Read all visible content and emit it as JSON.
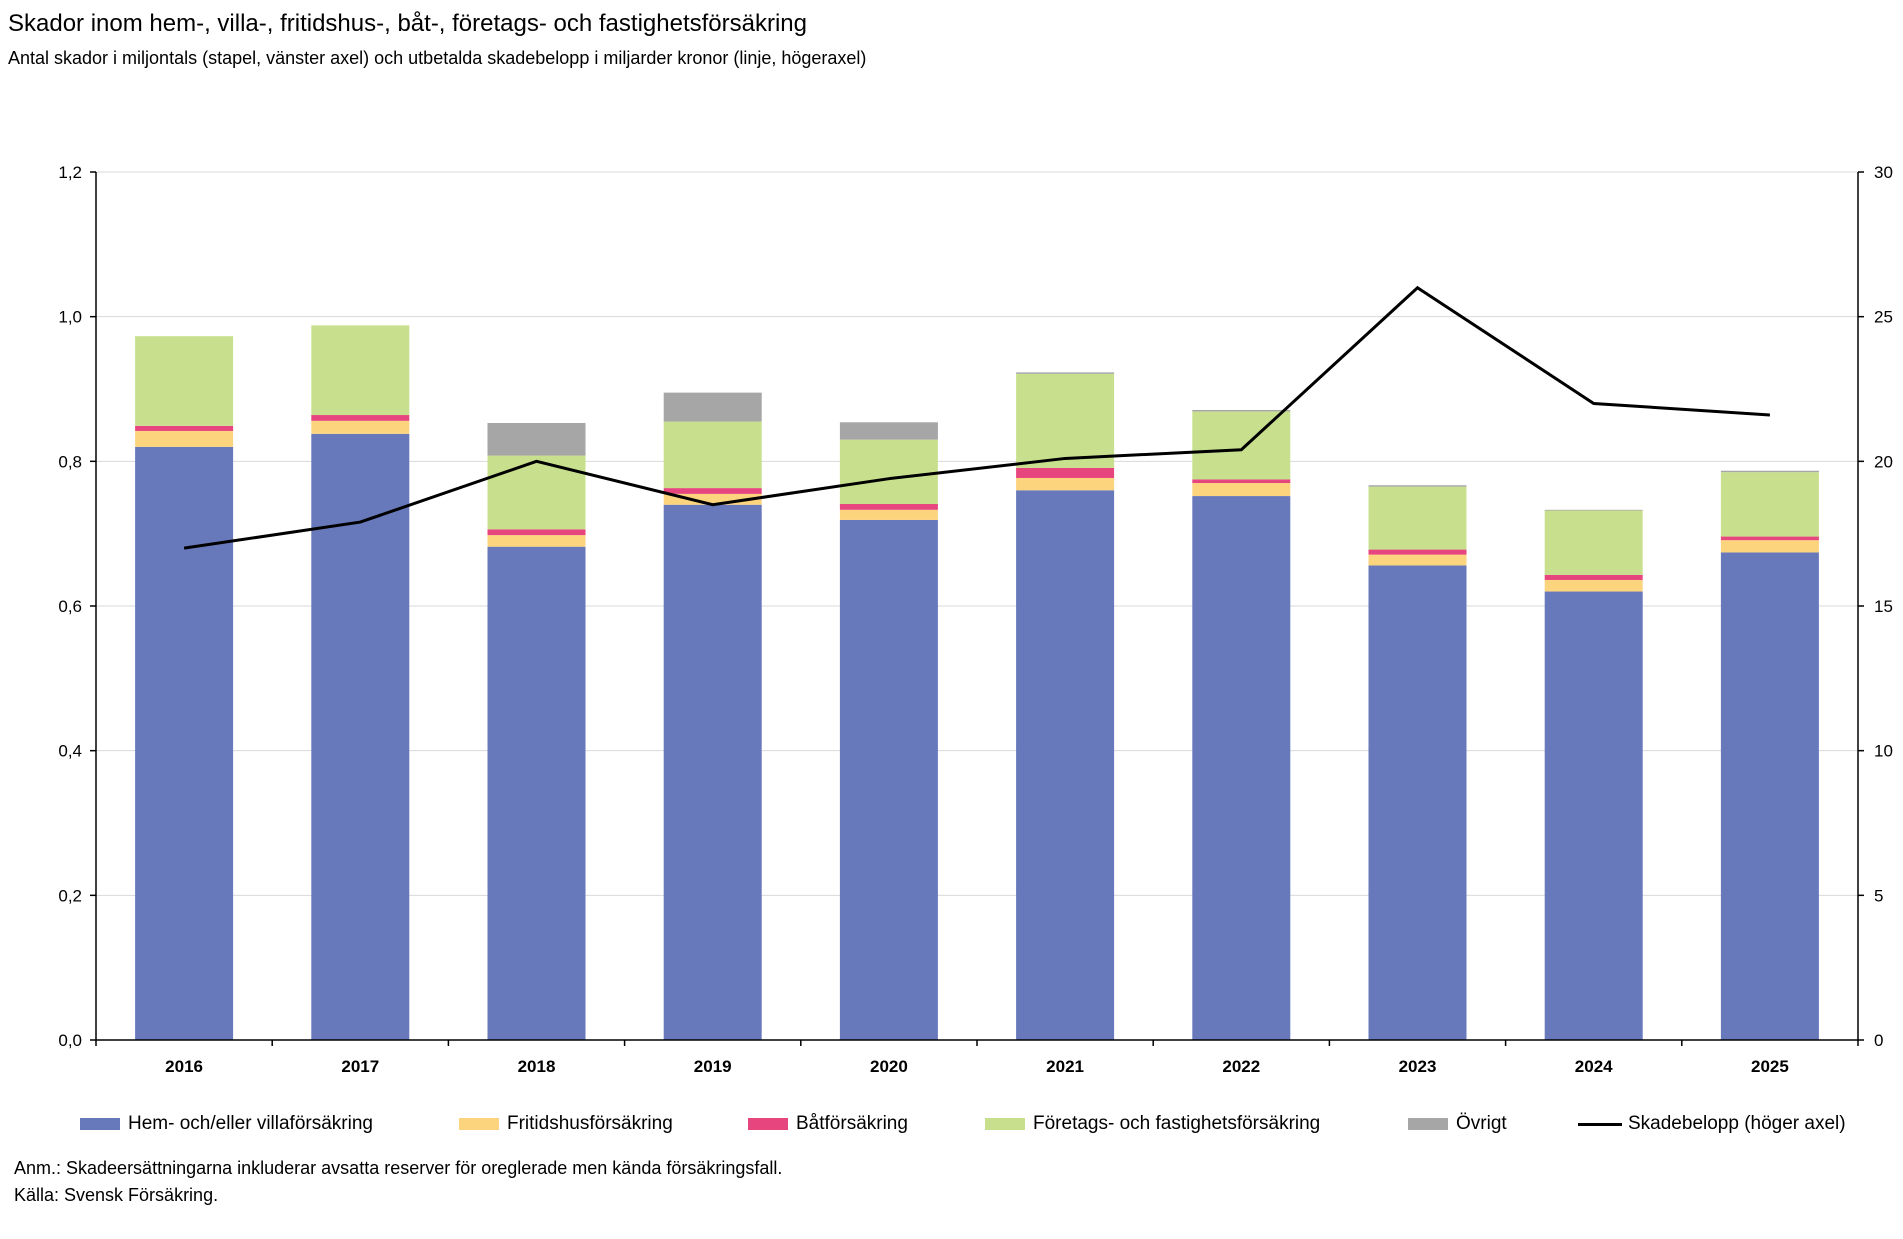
{
  "title": "Skador inom hem-, villa-, fritidshus-, båt-, företags- och fastighetsförsäkring",
  "subtitle": "Antal skador i miljontals (stapel, vänster axel) och utbetalda skadebelopp i miljarder kronor (linje, högeraxel)",
  "notes": {
    "anm": "Anm.: Skadeersättningarna inkluderar avsatta reserver för oreglerade men kända försäkringsfall.",
    "source": "Källa: Svensk Försäkring."
  },
  "chart_data": {
    "type": "bar",
    "stacked": true,
    "categories": [
      "2016",
      "2017",
      "2018",
      "2019",
      "2020",
      "2021",
      "2022",
      "2023",
      "2024",
      "2025"
    ],
    "y_left": {
      "lim": [
        0,
        1.2
      ],
      "ticks": [
        "0,0",
        "0,2",
        "0,4",
        "0,6",
        "0,8",
        "1,0",
        "1,2"
      ],
      "tick_values": [
        0,
        0.2,
        0.4,
        0.6,
        0.8,
        1.0,
        1.2
      ]
    },
    "y_right": {
      "lim": [
        0,
        30
      ],
      "ticks": [
        "0",
        "5",
        "10",
        "15",
        "20",
        "25",
        "30"
      ],
      "tick_values": [
        0,
        5,
        10,
        15,
        20,
        25,
        30
      ]
    },
    "grid": true,
    "legend_position": "bottom",
    "series": [
      {
        "name": "Hem- och/eller villaförsäkring",
        "color": "#6779bb",
        "values": [
          0.82,
          0.838,
          0.682,
          0.74,
          0.719,
          0.76,
          0.752,
          0.656,
          0.62,
          0.674
        ]
      },
      {
        "name": "Fritidshusförsäkring",
        "color": "#fdd47e",
        "values": [
          0.022,
          0.018,
          0.016,
          0.015,
          0.014,
          0.017,
          0.018,
          0.015,
          0.016,
          0.017
        ]
      },
      {
        "name": "Båtförsäkring",
        "color": "#e6457d",
        "values": [
          0.007,
          0.008,
          0.008,
          0.008,
          0.008,
          0.014,
          0.005,
          0.007,
          0.007,
          0.005
        ]
      },
      {
        "name": "Företags- och fastighetsförsäkring",
        "color": "#c8e08d",
        "values": [
          0.124,
          0.124,
          0.102,
          0.092,
          0.089,
          0.13,
          0.094,
          0.087,
          0.089,
          0.089
        ]
      },
      {
        "name": "Övrigt",
        "color": "#a6a6a6",
        "values": [
          0.0,
          0.0,
          0.045,
          0.04,
          0.024,
          0.002,
          0.002,
          0.002,
          0.001,
          0.002
        ]
      }
    ],
    "line": {
      "name": "Skadebelopp (höger axel)",
      "color": "#000000",
      "axis": "right",
      "values": [
        17.0,
        17.9,
        20.0,
        18.5,
        19.4,
        20.1,
        20.4,
        26.0,
        22.0,
        21.6
      ]
    }
  }
}
